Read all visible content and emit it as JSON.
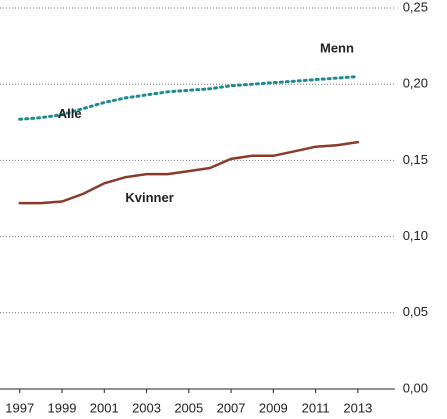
{
  "chart_data": {
    "type": "line",
    "x": [
      1997,
      1998,
      1999,
      2000,
      2001,
      2002,
      2003,
      2004,
      2005,
      2006,
      2007,
      2008,
      2009,
      2010,
      2011,
      2012,
      2013
    ],
    "series": [
      {
        "name": "Kvinner",
        "color": "#8b3a2a",
        "dash": "solid",
        "values": [
          0.122,
          0.122,
          0.123,
          0.128,
          0.135,
          0.139,
          0.141,
          0.141,
          0.143,
          0.145,
          0.151,
          0.153,
          0.153,
          0.156,
          0.159,
          0.16,
          0.162
        ]
      },
      {
        "name": "Alle",
        "color": "#1f8a94",
        "dash": "dotted",
        "values": [
          0.177,
          0.178,
          0.18,
          0.184,
          0.188,
          0.191,
          0.193,
          0.195,
          0.196,
          0.197,
          0.199,
          0.2,
          0.201,
          0.202,
          0.203,
          0.204,
          0.205
        ]
      }
    ],
    "annotations": [
      "Menn"
    ],
    "xlim": [
      1996,
      2014
    ],
    "xticks": [
      1997,
      1999,
      2001,
      2003,
      2005,
      2007,
      2009,
      2011,
      2013
    ],
    "ylim": [
      0,
      0.25
    ],
    "yticks": [
      {
        "value": 0,
        "label": "0,00"
      },
      {
        "value": 0.05,
        "label": "0,05"
      },
      {
        "value": 0.1,
        "label": "0,10"
      },
      {
        "value": 0.15,
        "label": "0,15"
      },
      {
        "value": 0.2,
        "label": "0,20"
      },
      {
        "value": 0.25,
        "label": "0,25"
      }
    ],
    "grid": true
  }
}
